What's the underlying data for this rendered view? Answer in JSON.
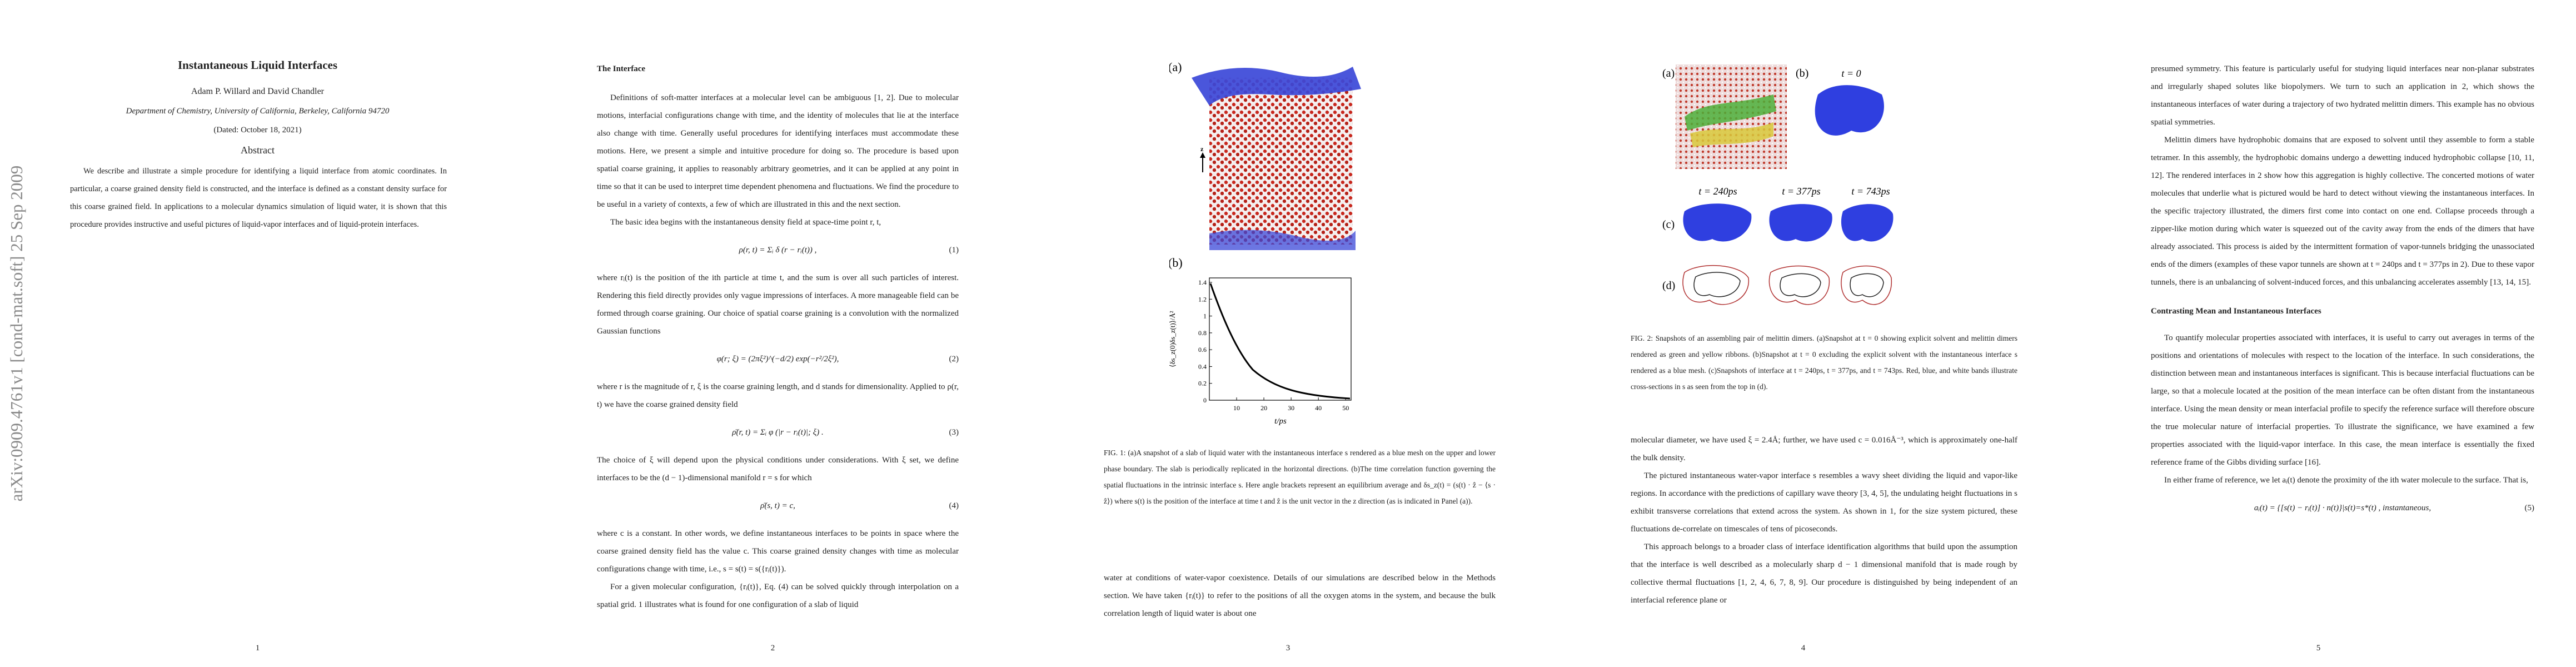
{
  "arxiv_label": "arXiv:0909.4761v1  [cond-mat.soft]  25 Sep 2009",
  "pages": [
    {
      "title": "Instantaneous Liquid Interfaces",
      "authors": "Adam P. Willard and David Chandler",
      "affiliation": "Department of Chemistry, University of California, Berkeley, California 94720",
      "dated": "(Dated: October 18, 2021)",
      "abstract_heading": "Abstract",
      "abstract": "We describe and illustrate a simple procedure for identifying a liquid interface from atomic coordinates. In particular, a coarse grained density field is constructed, and the interface is defined as a constant density surface for this coarse grained field. In applications to a molecular dynamics simulation of liquid water, it is shown that this procedure provides instructive and useful pictures of liquid-vapor interfaces and of liquid-protein interfaces.",
      "number": "1"
    },
    {
      "heading": "The Interface",
      "paragraphs": [
        "Definitions of soft-matter interfaces at a molecular level can be ambiguous [1, 2]. Due to molecular motions, interfacial configurations change with time, and the identity of molecules that lie at the interface also change with time. Generally useful procedures for identifying interfaces must accommodate these motions. Here, we present a simple and intuitive procedure for doing so. The procedure is based upon spatial coarse graining, it applies to reasonably arbitrary geometries, and it can be applied at any point in time so that it can be used to interpret time dependent phenomena and fluctuations. We find the procedure to be useful in a variety of contexts, a few of which are illustrated in this and the next section.",
        "The basic idea begins with the instantaneous density field at space-time point r, t,",
        "where rᵢ(t) is the position of the ith particle at time t, and the sum is over all such particles of interest. Rendering this field directly provides only vague impressions of interfaces. A more manageable field can be formed through coarse graining. Our choice of spatial coarse graining is a convolution with the normalized Gaussian functions",
        "where r is the magnitude of r, ξ is the coarse graining length, and d stands for dimensionality. Applied to ρ(r, t) we have the coarse grained density field",
        "The choice of ξ will depend upon the physical conditions under considerations. With ξ set, we define interfaces to be the (d − 1)-dimensional manifold r = s for which",
        "where c is a constant. In other words, we define instantaneous interfaces to be points in space where the coarse grained density field has the value c. This coarse grained density changes with time as molecular configurations change with time, i.e., s = s(t) = s({rᵢ(t)}).",
        "For a given molecular configuration, {rᵢ(t)}, Eq. (4) can be solved quickly through interpolation on a spatial grid. 1 illustrates what is found for one configuration of a slab of liquid"
      ],
      "equations": [
        {
          "expr": "ρ(r, t) = Σᵢ δ (r − rᵢ(t)) ,",
          "number": "(1)"
        },
        {
          "expr": "φ(r; ξ) = (2πξ²)^(−d/2) exp(−r²/2ξ²),",
          "number": "(2)"
        },
        {
          "expr": "ρ̄(r, t) = Σᵢ φ (|r − rᵢ(t)|; ξ) .",
          "number": "(3)"
        },
        {
          "expr": "ρ̄(s, t) = c,",
          "number": "(4)"
        }
      ],
      "number": "2"
    },
    {
      "figure": {
        "panel_a": "(a)",
        "axis_z": "z",
        "panel_b": "(b)",
        "y_label": "⟨δs_z(0)δs_z(t)⟩/Å²",
        "x_label": "t/ps",
        "yticks": [
          "0",
          "0.2",
          "0.4",
          "0.6",
          "0.8",
          "1",
          "1.2",
          "1.4"
        ],
        "xticks": [
          "10",
          "20",
          "30",
          "40",
          "50"
        ]
      },
      "caption": "FIG. 1: (a)A snapshot of a slab of liquid water with the instantaneous interface s rendered as a blue mesh on the upper and lower phase boundary. The slab is periodically replicated in the horizontal directions. (b)The time correlation function governing the spatial fluctuations in the intrinsic interface s. Here angle brackets represent an equilibrium average and δs_z(t) = (s(t) · ẑ − ⟨s · ẑ⟩) where s(t) is the position of the interface at time t and ẑ is the unit vector in the z direction (as is indicated in Panel (a)).",
      "paragraphs": [
        "water at conditions of water-vapor coexistence. Details of our simulations are described below in the Methods section. We have taken {rᵢ(t)} to refer to the positions of all the oxygen atoms in the system, and because the bulk correlation length of liquid water is about one"
      ],
      "number": "3"
    },
    {
      "figure": {
        "panel_a": "(a)",
        "panel_b": "(b)",
        "t0": "t = 0",
        "panel_c": "(c)",
        "t1": "t = 240ps",
        "t2": "t = 377ps",
        "t3": "t = 743ps",
        "panel_d": "(d)"
      },
      "caption": "FIG. 2: Snapshots of an assembling pair of melittin dimers. (a)Snapshot at t = 0 showing explicit solvent and melittin dimers rendered as green and yellow ribbons. (b)Snapshot at t = 0 excluding the explicit solvent with the instantaneous interface s rendered as a blue mesh. (c)Snapshots of interface at t = 240ps, t = 377ps, and t = 743ps. Red, blue, and white bands illustrate cross-sections in s as seen from the top in (d).",
      "paragraphs": [
        "molecular diameter, we have used ξ = 2.4Å; further, we have used c = 0.016Å⁻³, which is approximately one-half the bulk density.",
        "The pictured instantaneous water-vapor interface s resembles a wavy sheet dividing the liquid and vapor-like regions. In accordance with the predictions of capillary wave theory [3, 4, 5], the undulating height fluctuations in s exhibit transverse correlations that extend across the system. As shown in 1, for the size system pictured, these fluctuations de-correlate on timescales of tens of picoseconds.",
        "This approach belongs to a broader class of interface identification algorithms that build upon the assumption that the interface is well described as a molecularly sharp d − 1 dimensional manifold that is made rough by collective thermal fluctuations [1, 2, 4, 6, 7, 8, 9]. Our procedure is distinguished by being independent of an interfacial reference plane or"
      ],
      "number": "4"
    },
    {
      "paragraphs": [
        "presumed symmetry. This feature is particularly useful for studying liquid interfaces near non-planar substrates and irregularly shaped solutes like biopolymers. We turn to such an application in 2, which shows the instantaneous interfaces of water during a trajectory of two hydrated melittin dimers. This example has no obvious spatial symmetries.",
        "Melittin dimers have hydrophobic domains that are exposed to solvent until they assemble to form a stable tetramer. In this assembly, the hydrophobic domains undergo a dewetting induced hydrophobic collapse [10, 11, 12]. The rendered interfaces in 2 show how this aggregation is highly collective. The concerted motions of water molecules that underlie what is pictured would be hard to detect without viewing the instantaneous interfaces. In the specific trajectory illustrated, the dimers first come into contact on one end. Collapse proceeds through a zipper-like motion during which water is squeezed out of the cavity away from the ends of the dimers that have already associated. This process is aided by the intermittent formation of vapor-tunnels bridging the unassociated ends of the dimers (examples of these vapor tunnels are shown at t = 240ps and t = 377ps in 2). Due to these vapor tunnels, there is an unbalancing of solvent-induced forces, and this unbalancing accelerates assembly [13, 14, 15].",
        "To quantify molecular properties associated with interfaces, it is useful to carry out averages in terms of the positions and orientations of molecules with respect to the location of the interface. In such considerations, the distinction between mean and instantaneous interfaces is significant. This is because interfacial fluctuations can be large, so that a molecule located at the position of the mean interface can be often distant from the instantaneous interface. Using the mean density or mean interfacial profile to specify the reference surface will therefore obscure the true molecular nature of interfacial properties. To illustrate the significance, we have examined a few properties associated with the liquid-vapor interface. In this case, the mean interface is essentially the fixed reference frame of the Gibbs dividing surface [16].",
        "In either frame of reference, we let aᵢ(t) denote the proximity of the ith water molecule to the surface. That is,"
      ],
      "heading": "Contrasting Mean and Instantaneous Interfaces",
      "equations": [
        {
          "expr": "aᵢ(t) = {[s(t) − rᵢ(t)] · n(t)}|s(t)=s*(t) ,   instantaneous,",
          "number": "(5)"
        }
      ],
      "number": "5"
    }
  ]
}
